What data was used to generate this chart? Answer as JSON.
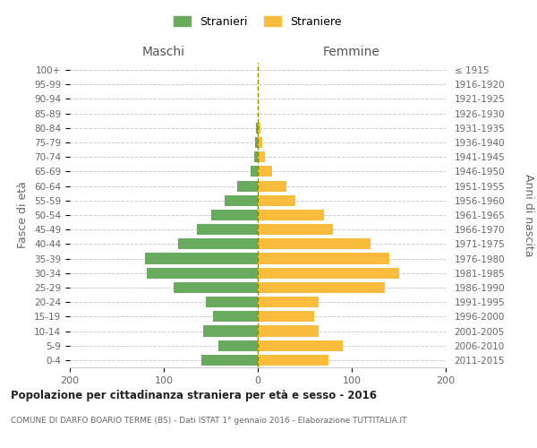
{
  "age_groups": [
    "0-4",
    "5-9",
    "10-14",
    "15-19",
    "20-24",
    "25-29",
    "30-34",
    "35-39",
    "40-44",
    "45-49",
    "50-54",
    "55-59",
    "60-64",
    "65-69",
    "70-74",
    "75-79",
    "80-84",
    "85-89",
    "90-94",
    "95-99",
    "100+"
  ],
  "birth_years": [
    "2011-2015",
    "2006-2010",
    "2001-2005",
    "1996-2000",
    "1991-1995",
    "1986-1990",
    "1981-1985",
    "1976-1980",
    "1971-1975",
    "1966-1970",
    "1961-1965",
    "1956-1960",
    "1951-1955",
    "1946-1950",
    "1941-1945",
    "1936-1940",
    "1931-1935",
    "1926-1930",
    "1921-1925",
    "1916-1920",
    "≤ 1915"
  ],
  "males": [
    60,
    42,
    58,
    48,
    55,
    90,
    118,
    120,
    85,
    65,
    50,
    35,
    22,
    8,
    4,
    3,
    2,
    0,
    0,
    0,
    0
  ],
  "females": [
    75,
    90,
    65,
    60,
    65,
    135,
    150,
    140,
    120,
    80,
    70,
    40,
    30,
    15,
    8,
    5,
    3,
    0,
    0,
    0,
    0
  ],
  "male_color": "#6aaa5e",
  "female_color": "#f9bc3c",
  "grid_color": "#cccccc",
  "dashed_line_color": "#8b8b00",
  "title1": "Popolazione per cittadinanza straniera per età e sesso - 2016",
  "title2": "COMUNE DI DARFO BOARIO TERME (BS) - Dati ISTAT 1° gennaio 2016 - Elaborazione TUTTITALIA.IT",
  "ylabel_left": "Fasce di età",
  "ylabel_right": "Anni di nascita",
  "header_maschi": "Maschi",
  "header_femmine": "Femmine",
  "legend_maschi": "Stranieri",
  "legend_femmine": "Straniere",
  "xlim": 200,
  "background_color": "#ffffff",
  "bar_height": 0.75
}
